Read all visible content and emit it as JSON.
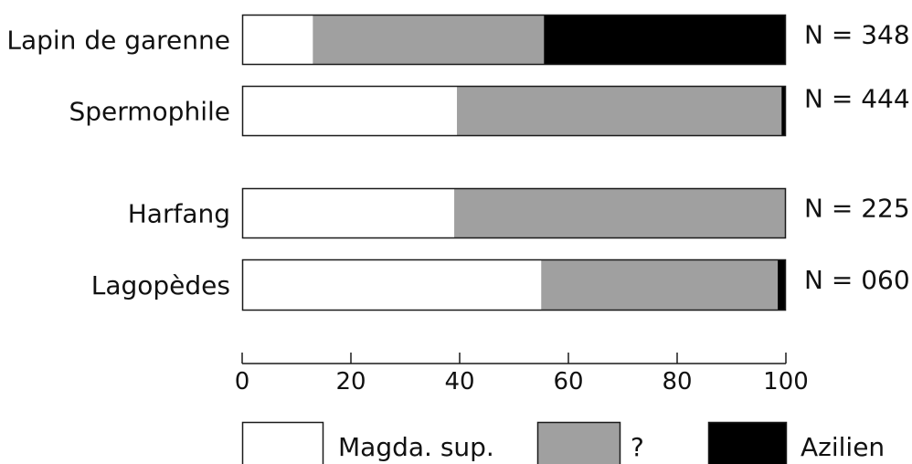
{
  "chart_data": {
    "type": "bar",
    "orientation": "horizontal",
    "stacked": true,
    "categories": [
      "Lapin de garenne",
      "Spermophile",
      "Harfang",
      "Lagopèdes"
    ],
    "counts": [
      "N = 348",
      "N = 444",
      "N = 225",
      "N = 060"
    ],
    "series": [
      {
        "name": "Magda. sup.",
        "color": "#ffffff",
        "values": [
          13,
          39.5,
          39,
          55
        ]
      },
      {
        "name": "?",
        "color": "#a0a0a0",
        "values": [
          42.5,
          59.7,
          61,
          43.5
        ]
      },
      {
        "name": "Azilien",
        "color": "#000000",
        "values": [
          44.5,
          0.8,
          0,
          1.5
        ]
      }
    ],
    "xlim": [
      0,
      100
    ],
    "xticks": [
      0,
      20,
      40,
      60,
      80,
      100
    ],
    "xticklabels": [
      "0",
      "20",
      "40",
      "60",
      "80",
      "100"
    ],
    "title": "",
    "xlabel": "",
    "ylabel": "",
    "grid": false,
    "legend": "bottom"
  }
}
